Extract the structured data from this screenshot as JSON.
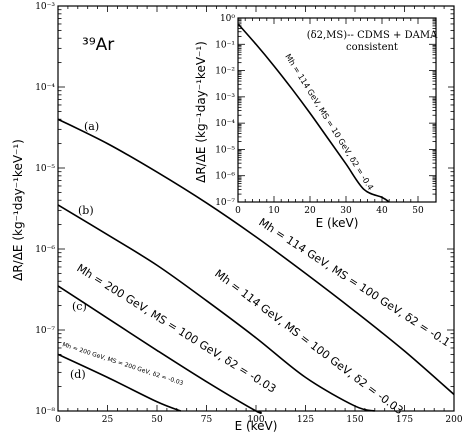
{
  "chart_data": [
    {
      "type": "line",
      "xlabel": "E (keV)",
      "ylabel": "ΔR/ΔE (kg⁻¹day⁻¹keV⁻¹)",
      "xlim": [
        0,
        200
      ],
      "ylim": [
        1e-08,
        0.001
      ],
      "yscale": "log",
      "x_ticks": [
        "0",
        "25",
        "50",
        "75",
        "100",
        "125",
        "150",
        "175",
        "200"
      ],
      "y_ticks": [
        "10⁻⁸",
        "10⁻⁷",
        "10⁻⁶",
        "10⁻⁵",
        "10⁻⁴",
        "10⁻³"
      ],
      "isotope_label": "³⁹Ar",
      "series": [
        {
          "label": "(a)",
          "annotation": "Mh = 114 GeV, MS = 100 GeV, δ2 = -0.1",
          "x": [
            0,
            25,
            50,
            75,
            100,
            125,
            150,
            175,
            200
          ],
          "y": [
            4e-05,
            2e-05,
            8.9e-06,
            3.7e-06,
            1.41e-06,
            5e-07,
            1.7e-07,
            5.5e-08,
            1.6e-08
          ]
        },
        {
          "label": "(b)",
          "annotation": "Mh = 114 GeV, MS = 100 GeV, δ2 = -0.03",
          "x": [
            0,
            25,
            50,
            75,
            100,
            125,
            150,
            160
          ],
          "y": [
            3.5e-06,
            1.5e-06,
            6.3e-07,
            2.3e-07,
            8e-08,
            2.6e-08,
            1.15e-08,
            1e-08
          ]
        },
        {
          "label": "(c)",
          "annotation": "Mh = 200 GeV, MS = 100 GeV, δ2 = -0.03",
          "x": [
            0,
            25,
            50,
            75,
            100,
            102
          ],
          "y": [
            3.5e-07,
            1.4e-07,
            5.6e-08,
            2.3e-08,
            1e-08,
            1e-08
          ]
        },
        {
          "label": "(d)",
          "annotation": "Mh = 200 GeV, MS = 200 GeV, δ2 = -0.03",
          "x": [
            0,
            25,
            50,
            62
          ],
          "y": [
            5e-08,
            2.6e-08,
            1.3e-08,
            1e-08
          ]
        }
      ]
    },
    {
      "type": "line",
      "title": "(δ2,MS)-- CDMS + DAMA",
      "subtitle": "consistent",
      "xlabel": "E (keV)",
      "ylabel": "ΔR/ΔE (kg⁻¹day⁻¹keV⁻¹)",
      "xlim": [
        0,
        55
      ],
      "ylim": [
        1e-07,
        1
      ],
      "yscale": "log",
      "x_ticks": [
        "0",
        "10",
        "20",
        "30",
        "40",
        "50"
      ],
      "y_ticks": [
        "10⁻⁷",
        "10⁻⁶",
        "10⁻⁵",
        "10⁻⁴",
        "10⁻³",
        "10⁻²",
        "10⁻¹",
        "10⁰"
      ],
      "series": [
        {
          "annotation": "Mh = 114 GeV, MS = 10 GeV, δ2 = -0.4",
          "x": [
            0,
            5,
            10,
            15,
            20,
            25,
            30,
            35,
            40,
            42
          ],
          "y": [
            0.6,
            0.1,
            0.015,
            0.002,
            0.00024,
            2.6e-05,
            2.8e-06,
            3e-07,
            1.5e-07,
            1e-07
          ]
        }
      ]
    }
  ]
}
